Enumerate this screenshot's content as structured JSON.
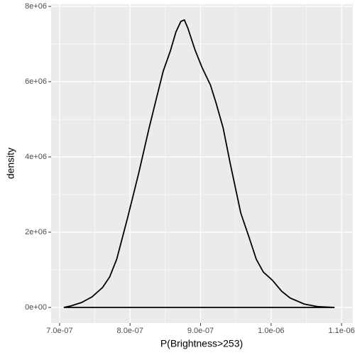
{
  "chart_data": {
    "type": "density",
    "xlabel": "P(Brightness>253)",
    "ylabel": "density",
    "x": [
      7.06e-07,
      7.16e-07,
      7.31e-07,
      7.46e-07,
      7.61e-07,
      7.71e-07,
      7.81e-07,
      7.97e-07,
      8.12e-07,
      8.27e-07,
      8.37e-07,
      8.47e-07,
      8.57e-07,
      8.65e-07,
      8.72e-07,
      8.77e-07,
      8.82e-07,
      8.92e-07,
      9.02e-07,
      9.14e-07,
      9.22e-07,
      9.32e-07,
      9.42e-07,
      9.57e-07,
      9.69e-07,
      9.79e-07,
      9.89e-07,
      1.002e-06,
      1.015e-06,
      1.027e-06,
      1.047e-06,
      1.067e-06,
      1.09e-06
    ],
    "values": [
      0,
      40000,
      130000,
      280000,
      530000,
      810000,
      1280000,
      2420000,
      3550000,
      4770000,
      5530000,
      6280000,
      6810000,
      7320000,
      7600000,
      7640000,
      7420000,
      6850000,
      6380000,
      5910000,
      5430000,
      4770000,
      3830000,
      2510000,
      1850000,
      1280000,
      940000,
      720000,
      430000,
      250000,
      90000,
      20000,
      0
    ],
    "color": "#000000",
    "xlim": [
      6.88e-07,
      1.116e-06
    ],
    "ylim": [
      -415000,
      8057000
    ],
    "xticks": [
      {
        "value": 7e-07,
        "label": "7.0e-07"
      },
      {
        "value": 8e-07,
        "label": "8.0e-07"
      },
      {
        "value": 9e-07,
        "label": "9.0e-07"
      },
      {
        "value": 1e-06,
        "label": "1.0e-06"
      },
      {
        "value": 1.1e-06,
        "label": "1.1e-06"
      }
    ],
    "yticks": [
      {
        "value": 0,
        "label": "0e+00"
      },
      {
        "value": 2000000,
        "label": "2e+06"
      },
      {
        "value": 4000000,
        "label": "4e+06"
      },
      {
        "value": 6000000,
        "label": "6e+06"
      },
      {
        "value": 8000000,
        "label": "8e+06"
      }
    ],
    "grid": true
  }
}
